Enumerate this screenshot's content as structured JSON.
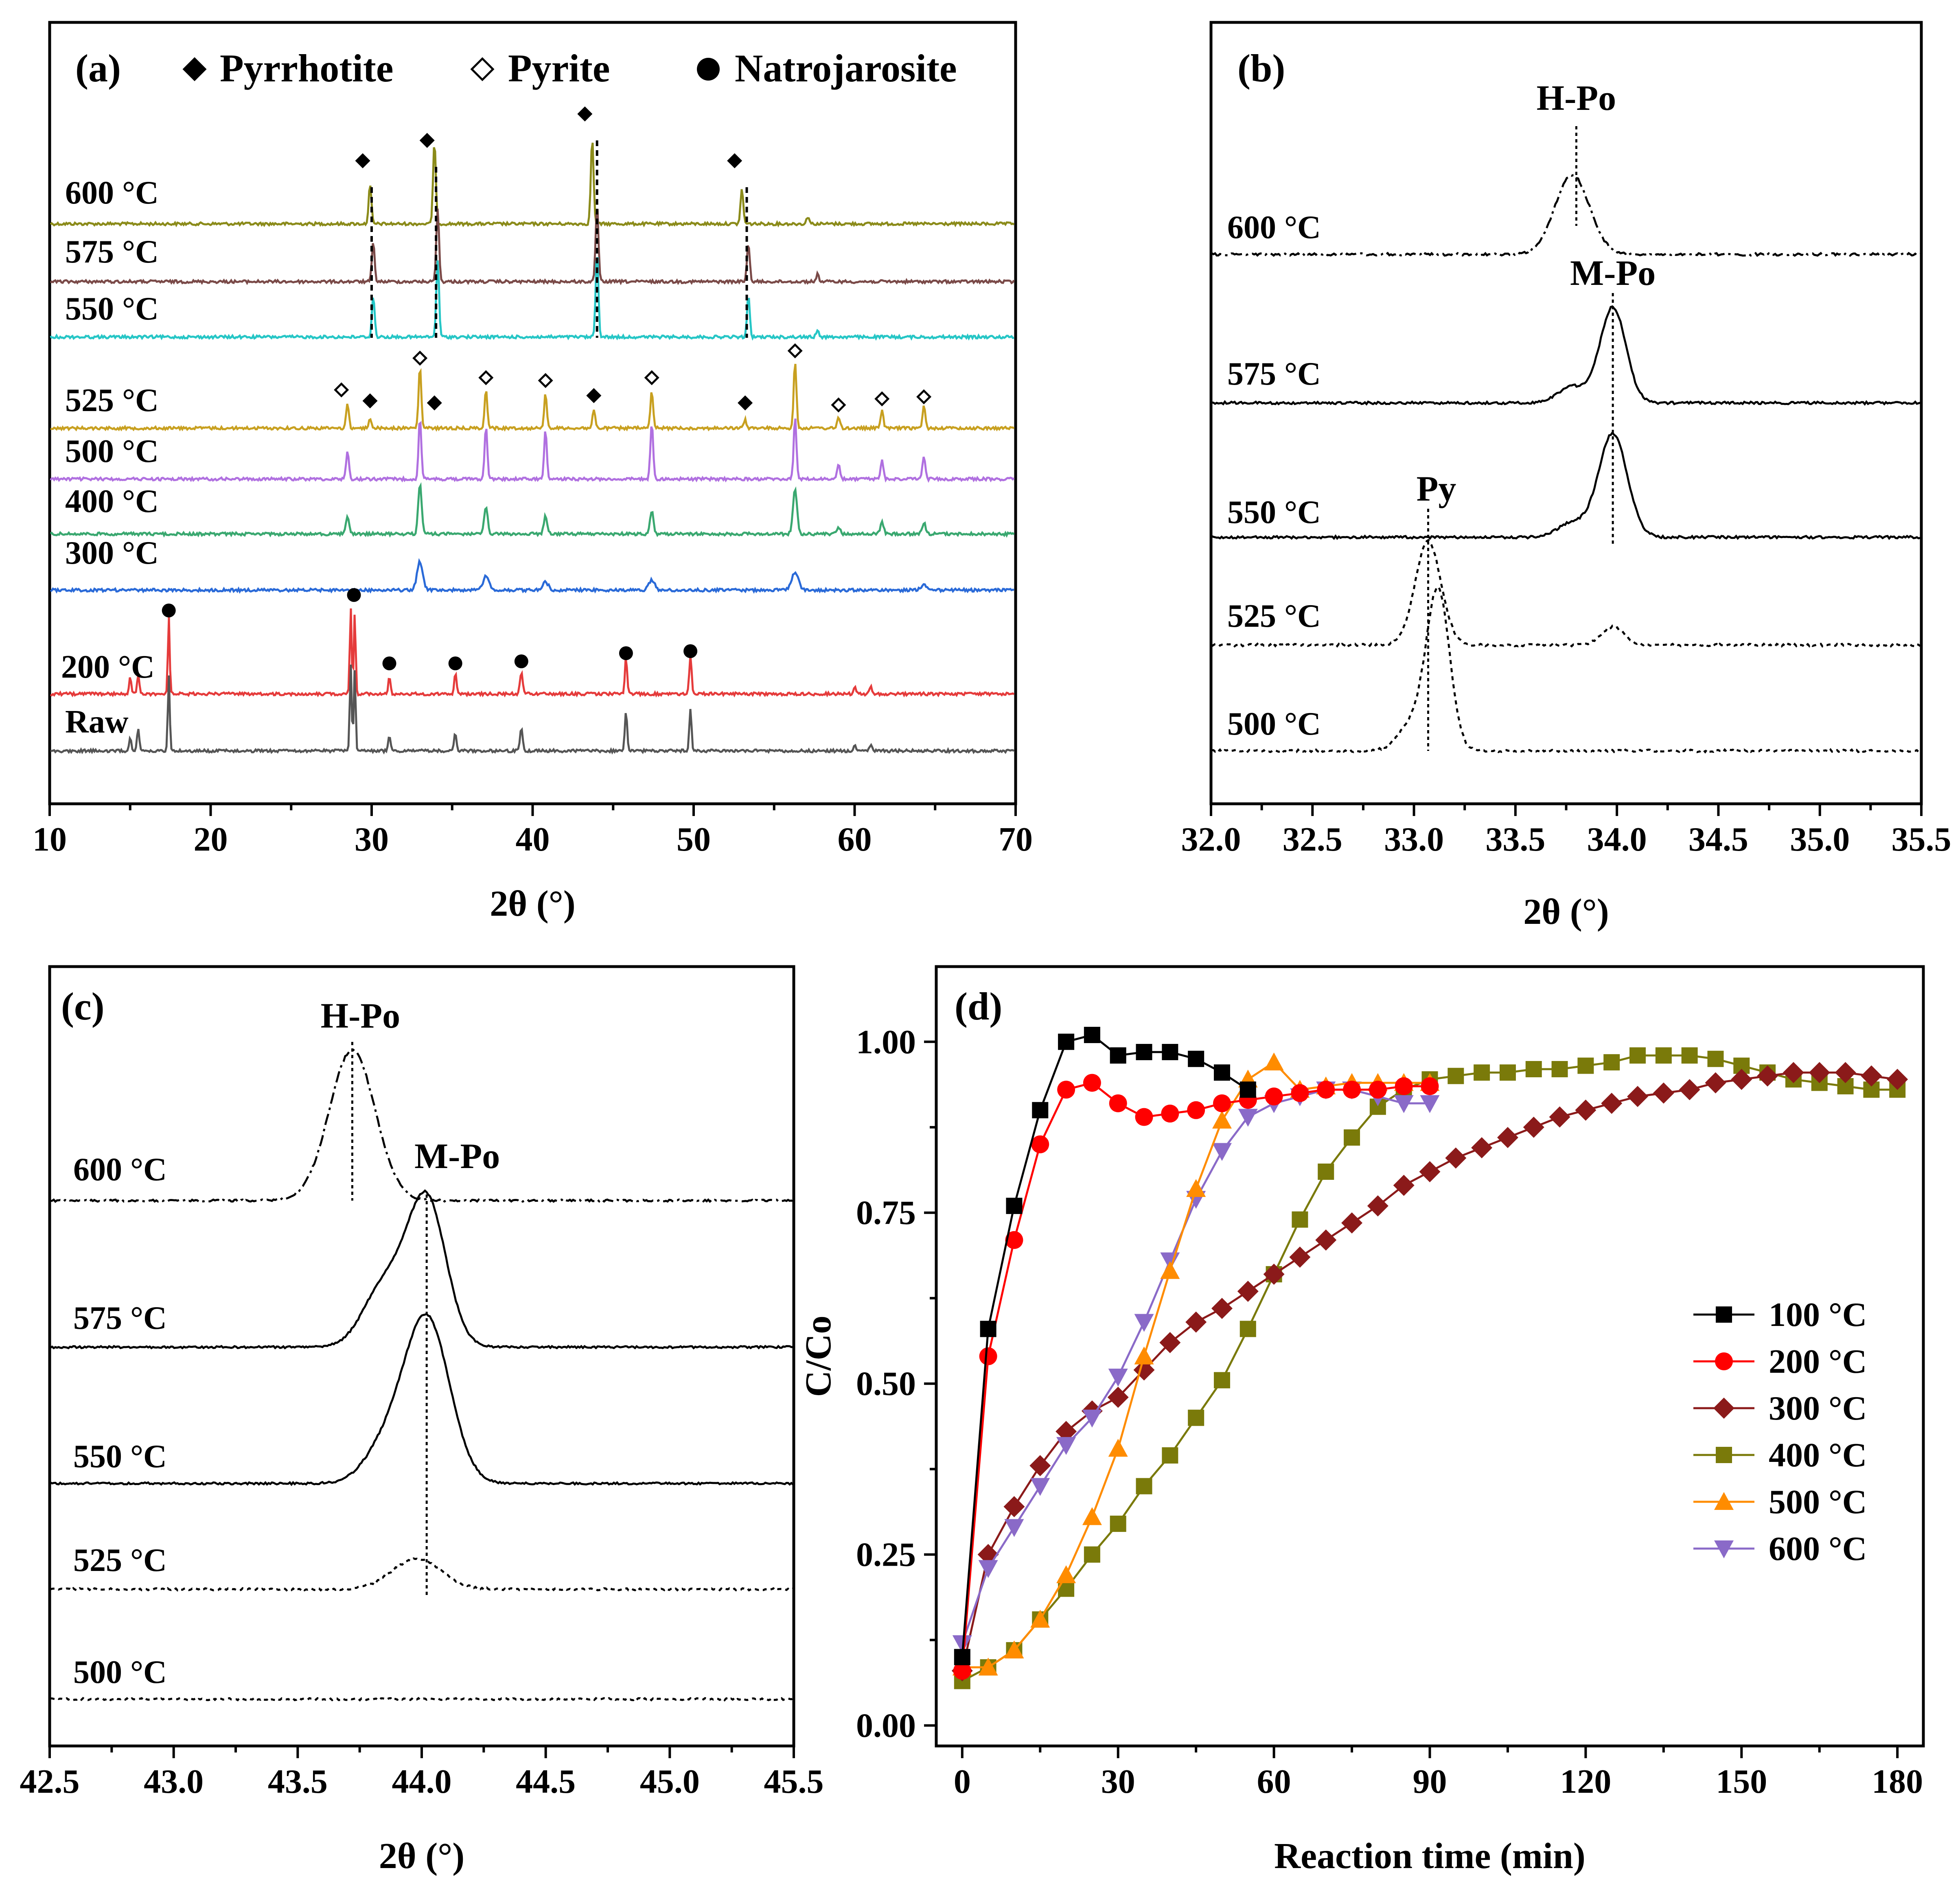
{
  "chart_data": [
    {
      "panel": "(a)",
      "type": "line",
      "xlabel": "2θ (°)",
      "xlim": [
        10,
        70
      ],
      "xticks": [
        10,
        20,
        30,
        40,
        50,
        60,
        70
      ],
      "legend": [
        {
          "marker": "filled-diamond",
          "label": "Pyrrhotite"
        },
        {
          "marker": "open-diamond",
          "label": "Pyrite"
        },
        {
          "marker": "filled-circle",
          "label": "Natrojarosite"
        }
      ],
      "series": [
        {
          "name": "600 °C",
          "color": "#8b8b1a"
        },
        {
          "name": "575 °C",
          "color": "#7a4a48"
        },
        {
          "name": "550 °C",
          "color": "#26c6c6"
        },
        {
          "name": "525 °C",
          "color": "#c8a020"
        },
        {
          "name": "500 °C",
          "color": "#b070e0"
        },
        {
          "name": "400 °C",
          "color": "#3aa870"
        },
        {
          "name": "300 °C",
          "color": "#2a6ad8"
        },
        {
          "name": "200 °C",
          "color": "#e53b3b"
        },
        {
          "name": "Raw",
          "color": "#555555"
        }
      ],
      "pyrrhotite_peaks": [
        29.9,
        33.9,
        43.7,
        53.0
      ],
      "pyrite_peaks": [
        28.5,
        33.0,
        37.1,
        40.8,
        47.4,
        56.3,
        59.0,
        61.7,
        64.3
      ],
      "natrojarosite_peaks": [
        17.4,
        28.9,
        31.1,
        35.2,
        39.3,
        45.8,
        49.8
      ]
    },
    {
      "panel": "(b)",
      "type": "line",
      "xlabel": "2θ (°)",
      "xlim": [
        32.0,
        35.5
      ],
      "xticks": [
        "32.0",
        "32.5",
        "33.0",
        "33.5",
        "34.0",
        "34.5",
        "35.0",
        "35.5"
      ],
      "series": [
        "600 °C",
        "575 °C",
        "550 °C",
        "525 °C",
        "500 °C"
      ],
      "annotations": [
        {
          "text": "H-Po",
          "x": 33.8
        },
        {
          "text": "M-Po",
          "x": 34.0
        },
        {
          "text": "Py",
          "x": 33.07
        }
      ]
    },
    {
      "panel": "(c)",
      "type": "line",
      "xlabel": "2θ (°)",
      "xlim": [
        42.5,
        45.5
      ],
      "xticks": [
        "42.5",
        "43.0",
        "43.5",
        "44.0",
        "44.5",
        "45.0",
        "45.5"
      ],
      "series": [
        "600 °C",
        "575 °C",
        "550 °C",
        "525 °C",
        "500 °C"
      ],
      "annotations": [
        {
          "text": "H-Po",
          "x": 43.72
        },
        {
          "text": "M-Po",
          "x": 44.02
        }
      ]
    },
    {
      "panel": "(d)",
      "type": "line",
      "xlabel": "Reaction time (min)",
      "ylabel": "C/Co",
      "xlim": [
        -5,
        185
      ],
      "ylim": [
        -0.03,
        1.11
      ],
      "xticks": [
        0,
        30,
        60,
        90,
        120,
        150,
        180
      ],
      "yticks": [
        "0.00",
        "0.25",
        "0.50",
        "0.75",
        "1.00"
      ],
      "legend_position": "right",
      "series": [
        {
          "name": "100 °C",
          "color": "#000000",
          "marker": "square",
          "x": [
            0,
            5,
            10,
            15,
            20,
            25,
            30,
            35,
            40,
            45,
            50,
            55
          ],
          "y": [
            0.1,
            0.58,
            0.76,
            0.9,
            1.0,
            1.01,
            0.98,
            0.985,
            0.985,
            0.975,
            0.955,
            0.93
          ]
        },
        {
          "name": "200 °C",
          "color": "#ff0000",
          "marker": "circle",
          "x": [
            0,
            5,
            10,
            15,
            20,
            25,
            30,
            35,
            40,
            45,
            50,
            55,
            60,
            65,
            70,
            75,
            80,
            85,
            90
          ],
          "y": [
            0.08,
            0.54,
            0.71,
            0.85,
            0.93,
            0.94,
            0.91,
            0.89,
            0.895,
            0.9,
            0.91,
            0.915,
            0.92,
            0.925,
            0.93,
            0.93,
            0.93,
            0.935,
            0.935
          ]
        },
        {
          "name": "300 °C",
          "color": "#8b1a1a",
          "marker": "diamond",
          "x": [
            0,
            5,
            10,
            15,
            20,
            25,
            30,
            35,
            40,
            45,
            50,
            55,
            60,
            65,
            70,
            75,
            80,
            85,
            90,
            95,
            100,
            105,
            110,
            115,
            120,
            125,
            130,
            135,
            140,
            145,
            150,
            155,
            160,
            165,
            170,
            175,
            180
          ],
          "y": [
            0.08,
            0.25,
            0.32,
            0.38,
            0.43,
            0.46,
            0.48,
            0.52,
            0.56,
            0.59,
            0.61,
            0.635,
            0.66,
            0.685,
            0.71,
            0.735,
            0.76,
            0.79,
            0.81,
            0.83,
            0.845,
            0.86,
            0.875,
            0.89,
            0.9,
            0.91,
            0.92,
            0.925,
            0.93,
            0.94,
            0.945,
            0.95,
            0.955,
            0.955,
            0.955,
            0.95,
            0.945
          ]
        },
        {
          "name": "400 °C",
          "color": "#7a7a0a",
          "marker": "square",
          "x": [
            0,
            5,
            10,
            15,
            20,
            25,
            30,
            35,
            40,
            45,
            50,
            55,
            60,
            65,
            70,
            75,
            80,
            85,
            90,
            95,
            100,
            105,
            110,
            115,
            120,
            125,
            130,
            135,
            140,
            145,
            150,
            155,
            160,
            165,
            170,
            175,
            180
          ],
          "y": [
            0.065,
            0.085,
            0.11,
            0.155,
            0.2,
            0.25,
            0.295,
            0.35,
            0.395,
            0.45,
            0.505,
            0.58,
            0.66,
            0.74,
            0.81,
            0.86,
            0.905,
            0.93,
            0.945,
            0.95,
            0.955,
            0.955,
            0.96,
            0.96,
            0.965,
            0.97,
            0.98,
            0.98,
            0.98,
            0.975,
            0.965,
            0.955,
            0.945,
            0.94,
            0.935,
            0.93,
            0.93
          ]
        },
        {
          "name": "500 °C",
          "color": "#ff8c00",
          "marker": "triangle-up",
          "x": [
            0,
            5,
            10,
            15,
            20,
            25,
            30,
            35,
            40,
            45,
            50,
            55,
            60,
            65,
            70,
            75,
            80,
            85,
            90
          ],
          "y": [
            0.085,
            0.085,
            0.11,
            0.155,
            0.22,
            0.305,
            0.405,
            0.54,
            0.665,
            0.785,
            0.885,
            0.945,
            0.97,
            0.93,
            0.935,
            0.94,
            0.94,
            0.94,
            0.94
          ]
        },
        {
          "name": "600 °C",
          "color": "#8a6ac8",
          "marker": "triangle-down",
          "x": [
            0,
            5,
            10,
            15,
            20,
            25,
            30,
            35,
            40,
            45,
            50,
            55,
            60,
            65,
            70,
            75,
            80,
            85,
            90
          ],
          "y": [
            0.12,
            0.23,
            0.29,
            0.35,
            0.41,
            0.45,
            0.51,
            0.59,
            0.68,
            0.77,
            0.84,
            0.89,
            0.91,
            0.92,
            0.93,
            0.93,
            0.92,
            0.91,
            0.91
          ]
        }
      ]
    }
  ]
}
